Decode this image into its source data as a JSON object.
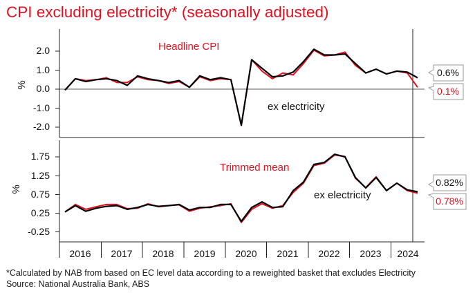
{
  "title": "CPI excluding electricity* (seasonally adjusted)",
  "footnote": "*Calculated by NAB from based on EC level data according to a reweighted basket that excludes Electricity",
  "source": "Source: National Australia Bank, ABS",
  "colors": {
    "headline": "#e0101f",
    "ex_electricity": "#000000",
    "title": "#e0101f"
  },
  "chart_data": [
    {
      "type": "line",
      "ylabel": "%",
      "ylim": [
        -2.3,
        2.5
      ],
      "yticks": [
        "2.0",
        "1.0",
        "0.0",
        "-1.0",
        "-2.0"
      ],
      "x_labels": [
        "2016",
        "2017",
        "2018",
        "2019",
        "2020",
        "2021",
        "2022",
        "2023",
        "2024"
      ],
      "x_start": "2015 Q3",
      "x_end": "2024 Q2",
      "series": [
        {
          "name": "Headline CPI",
          "color": "#e0101f",
          "values": [
            -0.05,
            0.55,
            0.45,
            0.5,
            0.6,
            0.35,
            0.35,
            0.65,
            0.5,
            0.45,
            0.3,
            0.4,
            0.1,
            0.65,
            0.45,
            0.55,
            0.5,
            -1.9,
            1.55,
            0.95,
            0.55,
            0.85,
            0.75,
            1.35,
            2.05,
            1.75,
            1.8,
            1.95,
            1.25,
            0.85,
            1.05,
            0.8,
            0.95,
            0.85,
            0.1
          ]
        },
        {
          "name": "ex electricity",
          "color": "#000000",
          "values": [
            -0.05,
            0.55,
            0.4,
            0.5,
            0.55,
            0.45,
            0.2,
            0.7,
            0.55,
            0.45,
            0.35,
            0.45,
            0.1,
            0.7,
            0.5,
            0.6,
            0.5,
            -1.9,
            1.55,
            1.1,
            0.65,
            0.7,
            0.9,
            1.45,
            2.1,
            1.8,
            1.8,
            1.85,
            1.35,
            0.85,
            1.05,
            0.8,
            0.95,
            0.9,
            0.6
          ]
        }
      ],
      "annotations": {
        "headline_label": "Headline CPI",
        "ex_label": "ex electricity"
      },
      "callouts": {
        "ex_value": "0.6%",
        "headline_value": "0.1%"
      }
    },
    {
      "type": "line",
      "ylabel": "%",
      "ylim": [
        -0.45,
        1.95
      ],
      "yticks": [
        "1.75",
        "1.25",
        "0.75",
        "0.25",
        "-0.25"
      ],
      "x_labels": [
        "2016",
        "2017",
        "2018",
        "2019",
        "2020",
        "2021",
        "2022",
        "2023",
        "2024"
      ],
      "x_start": "2015 Q3",
      "x_end": "2024 Q2",
      "series": [
        {
          "name": "Trimmed mean",
          "color": "#e0101f",
          "values": [
            0.28,
            0.48,
            0.35,
            0.42,
            0.48,
            0.48,
            0.37,
            0.38,
            0.5,
            0.42,
            0.45,
            0.47,
            0.3,
            0.38,
            0.42,
            0.45,
            0.5,
            0.0,
            0.35,
            0.5,
            0.38,
            0.45,
            0.8,
            1.05,
            1.52,
            1.58,
            1.8,
            1.76,
            1.18,
            0.93,
            1.22,
            0.85,
            1.05,
            0.85,
            0.78
          ]
        },
        {
          "name": "ex electricity",
          "color": "#000000",
          "values": [
            0.28,
            0.45,
            0.3,
            0.38,
            0.43,
            0.45,
            0.35,
            0.4,
            0.48,
            0.43,
            0.45,
            0.48,
            0.33,
            0.4,
            0.4,
            0.48,
            0.48,
            0.03,
            0.4,
            0.55,
            0.4,
            0.42,
            0.85,
            1.08,
            1.55,
            1.6,
            1.82,
            1.75,
            1.2,
            0.92,
            1.2,
            0.85,
            1.05,
            0.87,
            0.82
          ]
        }
      ],
      "annotations": {
        "trimmed_label": "Trimmed mean",
        "ex_label": "ex electricity"
      },
      "callouts": {
        "ex_value": "0.82%",
        "trimmed_value": "0.78%"
      }
    }
  ]
}
